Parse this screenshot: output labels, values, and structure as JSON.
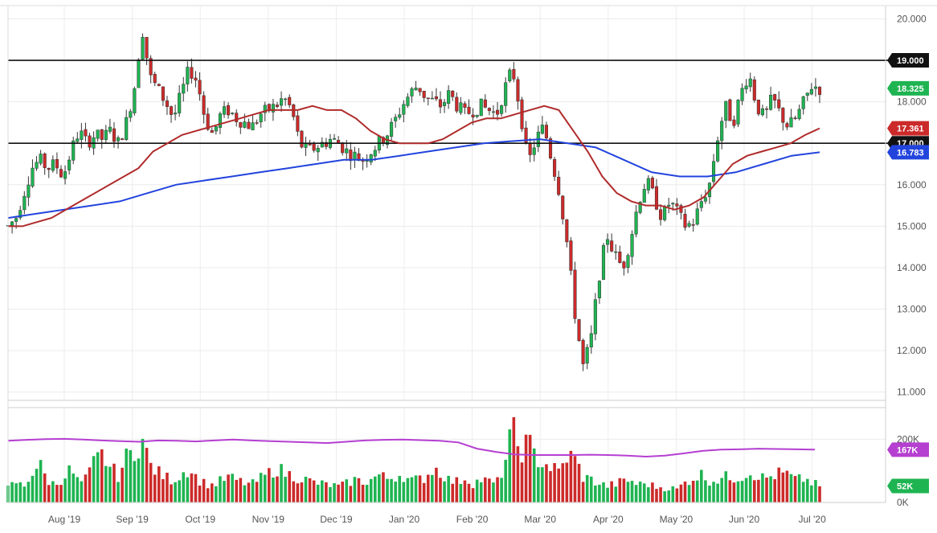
{
  "chart_data": {
    "type": "candlestick",
    "x_labels": [
      "Aug '19",
      "Sep '19",
      "Oct '19",
      "Nov '19",
      "Dec '19",
      "Jan '20",
      "Feb '20",
      "Mar '20",
      "Apr '20",
      "May '20",
      "Jun '20",
      "Jul '20"
    ],
    "price_axis": {
      "range": [
        10.8,
        20.3
      ],
      "ticks": [
        "20.000",
        "19.000",
        "18.000",
        "17.000",
        "16.000",
        "15.000",
        "14.000",
        "13.000",
        "12.000",
        "11.000"
      ],
      "tick_values": [
        20,
        19,
        18,
        17,
        16,
        15,
        14,
        13,
        12,
        11
      ]
    },
    "volume_axis": {
      "range": [
        0,
        300
      ],
      "ticks": [
        "200K",
        "0K"
      ],
      "tick_values": [
        200,
        0
      ]
    },
    "horizontal_lines": [
      19.0,
      17.0
    ],
    "price_tags": [
      {
        "label": "19.000",
        "value": 19.0,
        "color": "#111111"
      },
      {
        "label": "18.325",
        "value": 18.325,
        "color": "#1fb452"
      },
      {
        "label": "17.361",
        "value": 17.361,
        "color": "#cc2a2a"
      },
      {
        "label": "17.000",
        "value": 17.0,
        "color": "#111111"
      },
      {
        "label": "16.783",
        "value": 16.783,
        "color": "#2244dd"
      }
    ],
    "volume_tags": [
      {
        "label": "167K",
        "value": 167,
        "color": "#b53fd1"
      },
      {
        "label": "52K",
        "value": 52,
        "color": "#1fb452"
      }
    ],
    "price_path": [
      15.0,
      15.2,
      15.8,
      16.4,
      16.6,
      16.4,
      16.5,
      16.2,
      16.8,
      17.3,
      17.0,
      17.2,
      17.1,
      17.3,
      17.0,
      17.5,
      18.3,
      19.8,
      18.6,
      18.3,
      18.0,
      17.6,
      18.2,
      18.8,
      18.5,
      17.6,
      17.2,
      17.7,
      17.8,
      17.6,
      17.5,
      17.4,
      17.7,
      17.8,
      17.9,
      18.1,
      17.8,
      17.0,
      16.8,
      16.9,
      17.0,
      17.1,
      17.0,
      16.8,
      16.7,
      16.6,
      16.8,
      17.0,
      17.2,
      17.5,
      17.9,
      18.2,
      18.4,
      18.1,
      18.0,
      17.9,
      18.2,
      17.9,
      17.7,
      17.8,
      17.9,
      17.8,
      17.7,
      18.3,
      18.8,
      17.8,
      16.5,
      17.1,
      17.4,
      16.6,
      15.8,
      14.5,
      12.8,
      11.6,
      12.3,
      13.8,
      14.8,
      14.3,
      14.0,
      14.7,
      15.6,
      16.1,
      15.7,
      15.2,
      15.6,
      15.3,
      15.0,
      15.1,
      15.6,
      16.0,
      17.1,
      17.9,
      17.5,
      18.2,
      18.7,
      17.9,
      17.6,
      18.1,
      17.7,
      17.4,
      17.6,
      18.0,
      18.4,
      18.325
    ],
    "sma_50": [
      15.0,
      15.0,
      15.1,
      15.2,
      15.4,
      15.6,
      15.8,
      16.0,
      16.2,
      16.4,
      16.8,
      17.0,
      17.2,
      17.3,
      17.4,
      17.5,
      17.6,
      17.7,
      17.8,
      17.8,
      17.8,
      17.9,
      17.8,
      17.8,
      17.6,
      17.3,
      17.1,
      17.0,
      17.0,
      17.0,
      17.1,
      17.3,
      17.5,
      17.6,
      17.6,
      17.7,
      17.8,
      17.9,
      17.8,
      17.3,
      16.8,
      16.2,
      15.8,
      15.6,
      15.5,
      15.5,
      15.4,
      15.5,
      15.7,
      16.1,
      16.5,
      16.7,
      16.8,
      16.9,
      17.0,
      17.2,
      17.361
    ],
    "sma_200": [
      15.2,
      15.3,
      15.4,
      15.5,
      15.6,
      15.8,
      16.0,
      16.1,
      16.2,
      16.3,
      16.4,
      16.5,
      16.6,
      16.6,
      16.7,
      16.8,
      16.9,
      17.0,
      17.05,
      17.1,
      17.0,
      16.9,
      16.6,
      16.3,
      16.2,
      16.2,
      16.3,
      16.5,
      16.7,
      16.783
    ],
    "volume_values": [
      45,
      65,
      48,
      95,
      120,
      70,
      55,
      80,
      105,
      60,
      75,
      130,
      150,
      110,
      85,
      140,
      165,
      200,
      120,
      95,
      80,
      70,
      90,
      110,
      75,
      60,
      55,
      68,
      80,
      70,
      62,
      58,
      75,
      90,
      110,
      95,
      85,
      78,
      70,
      62,
      58,
      55,
      50,
      60,
      72,
      65,
      70,
      88,
      75,
      82,
      90,
      68,
      72,
      80,
      110,
      95,
      70,
      65,
      78,
      60,
      72,
      66,
      58,
      120,
      230,
      160,
      190,
      140,
      125,
      110,
      95,
      150,
      135,
      80,
      72,
      60,
      52,
      58,
      66,
      70,
      55,
      62,
      50,
      48,
      45,
      42,
      65,
      78,
      88,
      70,
      72,
      80,
      78,
      82,
      96,
      88,
      75,
      84,
      92,
      88,
      70,
      75,
      62,
      52
    ],
    "volume_avg": [
      195,
      198,
      200,
      201,
      199,
      196,
      194,
      192,
      196,
      195,
      193,
      196,
      199,
      196,
      194,
      192,
      190,
      188,
      192,
      196,
      198,
      199,
      197,
      195,
      190,
      170,
      160,
      152,
      150,
      150,
      150,
      151,
      150,
      148,
      145,
      148,
      155,
      163,
      167,
      168,
      170,
      169,
      168,
      167
    ]
  }
}
